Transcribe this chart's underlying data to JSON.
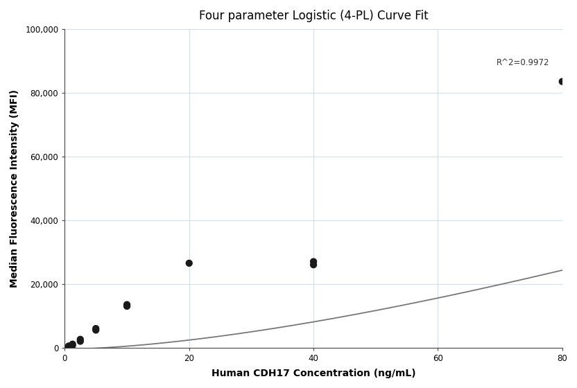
{
  "title": "Four parameter Logistic (4-PL) Curve Fit",
  "xlabel": "Human CDH17 Concentration (ng/mL)",
  "ylabel": "Median Fluorescence Intensity (MFI)",
  "scatter_x": [
    0.625,
    0.625,
    1.25,
    1.25,
    2.5,
    2.5,
    5.0,
    5.0,
    10.0,
    10.0,
    20.0,
    40.0,
    40.0,
    80.0
  ],
  "scatter_y": [
    200,
    500,
    700,
    1100,
    2000,
    2600,
    5500,
    6000,
    13000,
    13500,
    26500,
    26000,
    27000,
    83500
  ],
  "r_squared": "R^2=0.9972",
  "xlim": [
    0,
    80
  ],
  "ylim": [
    0,
    100000
  ],
  "yticks": [
    0,
    20000,
    40000,
    60000,
    80000,
    100000
  ],
  "xticks": [
    0,
    20,
    40,
    60,
    80
  ],
  "dot_color": "#1a1a1a",
  "dot_size": 55,
  "curve_color": "#777777",
  "curve_linewidth": 1.3,
  "grid_color": "#ccdcee",
  "background_color": "#ffffff",
  "title_fontsize": 12,
  "label_fontsize": 10,
  "label_fontweight": "bold",
  "4pl_A": -500,
  "4pl_B": 1.6,
  "4pl_C": 400,
  "4pl_D": 350000
}
